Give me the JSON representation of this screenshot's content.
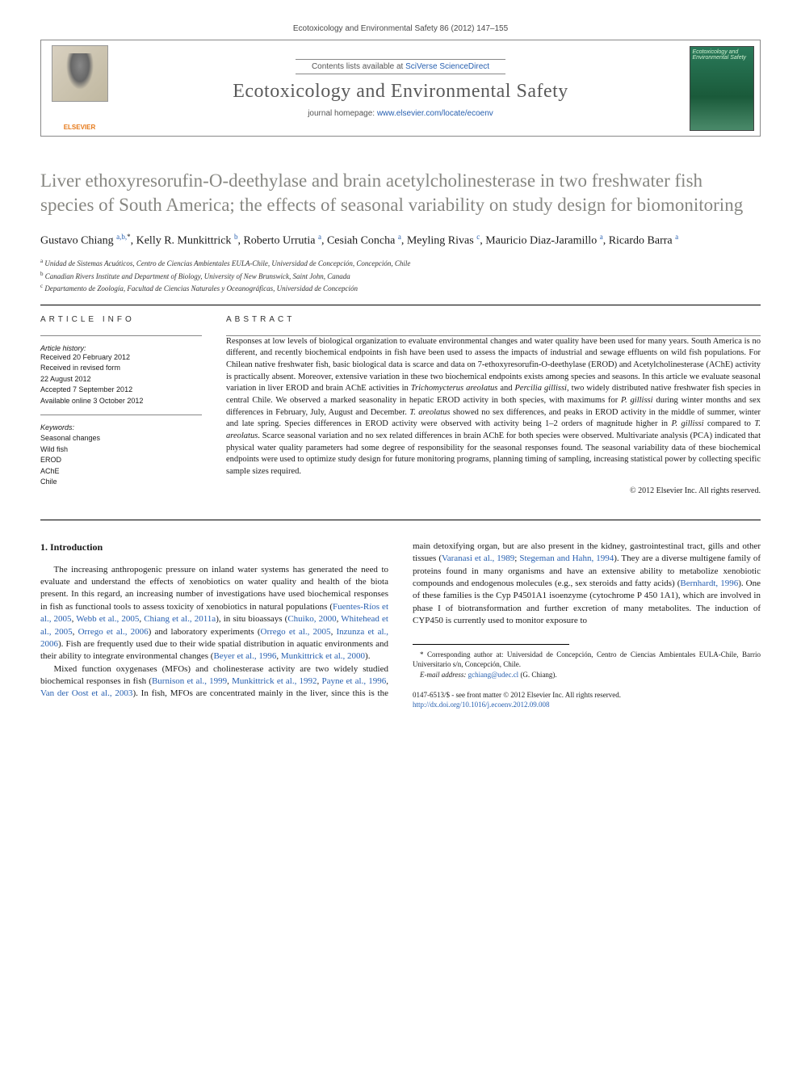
{
  "page_header": "Ecotoxicology and Environmental Safety 86 (2012) 147–155",
  "banner": {
    "contents_prefix": "Contents lists available at ",
    "contents_link": "SciVerse ScienceDirect",
    "journal_name": "Ecotoxicology and Environmental Safety",
    "homepage_prefix": "journal homepage: ",
    "homepage_link": "www.elsevier.com/locate/ecoenv",
    "publisher": "ELSEVIER",
    "cover_title": "Ecotoxicology and Environmental Safety"
  },
  "article": {
    "title": "Liver ethoxyresorufin-O-deethylase and brain acetylcholinesterase in two freshwater fish species of South America; the effects of seasonal variability on study design for biomonitoring",
    "authors_html": "Gustavo Chiang <span class='sup'>a,b,</span><span class='sup star'>*</span>, Kelly R. Munkittrick <span class='sup'>b</span>, Roberto Urrutia <span class='sup'>a</span>, Cesiah Concha <span class='sup'>a</span>, Meyling Rivas <span class='sup'>c</span>, Mauricio Diaz-Jaramillo <span class='sup'>a</span>, Ricardo Barra <span class='sup'>a</span>",
    "affiliations": [
      {
        "sup": "a",
        "text": "Unidad de Sistemas Acuáticos, Centro de Ciencias Ambientales EULA-Chile, Universidad de Concepción, Concepción, Chile"
      },
      {
        "sup": "b",
        "text": "Canadian Rivers Institute and Department of Biology, University of New Brunswick, Saint John, Canada"
      },
      {
        "sup": "c",
        "text": "Departamento de Zoología, Facultad de Ciencias Naturales y Oceanográficas, Universidad de Concepción"
      }
    ]
  },
  "article_info": {
    "heading": "article info",
    "history_label": "Article history:",
    "history": [
      "Received 20 February 2012",
      "Received in revised form",
      "22 August 2012",
      "Accepted 7 September 2012",
      "Available online 3 October 2012"
    ],
    "keywords_label": "Keywords:",
    "keywords": [
      "Seasonal changes",
      "Wild fish",
      "EROD",
      "AChE",
      "Chile"
    ]
  },
  "abstract": {
    "heading": "abstract",
    "text": "Responses at low levels of biological organization to evaluate environmental changes and water quality have been used for many years. South America is no different, and recently biochemical endpoints in fish have been used to assess the impacts of industrial and sewage effluents on wild fish populations. For Chilean native freshwater fish, basic biological data is scarce and data on 7-ethoxyresorufin-O-deethylase (EROD) and Acetylcholinesterase (AChE) activity is practically absent. Moreover, extensive variation in these two biochemical endpoints exists among species and seasons. In this article we evaluate seasonal variation in liver EROD and brain AChE activities in Trichomycterus areolatus and Percilia gillissi, two widely distributed native freshwater fish species in central Chile. We observed a marked seasonality in hepatic EROD activity in both species, with maximums for P. gillissi during winter months and sex differences in February, July, August and December. T. areolatus showed no sex differences, and peaks in EROD activity in the middle of summer, winter and late spring. Species differences in EROD activity were observed with activity being 1–2 orders of magnitude higher in P. gillissi compared to T. areolatus. Scarce seasonal variation and no sex related differences in brain AChE for both species were observed. Multivariate analysis (PCA) indicated that physical water quality parameters had some degree of responsibility for the seasonal responses found. The seasonal variability data of these biochemical endpoints were used to optimize study design for future monitoring programs, planning timing of sampling, increasing statistical power by collecting specific sample sizes required.",
    "copyright": "© 2012 Elsevier Inc. All rights reserved."
  },
  "body": {
    "section_heading": "1. Introduction",
    "para1_a": "The increasing anthropogenic pressure on inland water systems has generated the need to evaluate and understand the effects of xenobiotics on water quality and health of the biota present. In this regard, an increasing number of investigations have used biochemical responses in fish as functional tools to assess toxicity of xenobiotics in natural populations (",
    "ref1": "Fuentes-Ríos et al., 2005",
    "ref2": "Webb et al., 2005",
    "ref3": "Chiang et al., 2011a",
    "para1_b": "), in situ bioassays (",
    "ref4": "Chuiko, 2000",
    "ref5": "Whitehead et al., 2005",
    "ref6": "Orrego et al., 2006",
    "para1_c": ") and laboratory experiments (",
    "ref7": "Orrego et al., 2005",
    "ref8": "Inzunza et al., 2006",
    "para1_d": "). Fish are frequently used due to their wide spatial distribution in aquatic environments and their ability to integrate environmental changes (",
    "ref9": "Beyer et al., 1996",
    "ref10": "Munkittrick et al., 2000",
    "para1_e": ").",
    "para2_a": "Mixed function oxygenases (MFOs) and cholinesterase activity are two widely studied biochemical responses in fish (",
    "ref11": "Burnison et al., 1999",
    "ref12": "Munkittrick et al., 1992",
    "ref13": "Payne et al., 1996",
    "ref14": "Van der Oost et al., 2003",
    "para2_b": "). In fish, MFOs are concentrated mainly in the liver, since this is the main detoxifying organ, but are also present in the kidney, gastrointestinal tract, gills and other tissues (",
    "ref15": "Varanasi et al., 1989",
    "ref16": "Stegeman and Hahn, 1994",
    "para2_c": "). They are a diverse multigene family of proteins found in many organisms and have an extensive ability to metabolize xenobiotic compounds and endogenous molecules (e.g., sex steroids and fatty acids) (",
    "ref17": "Bernhardt, 1996",
    "para2_d": "). One of these families is the Cyp P4501A1 isoenzyme (cytochrome P 450 1A1), which are involved in phase I of biotransformation and further excretion of many metabolites. The induction of CYP450 is currently used to monitor exposure to"
  },
  "footnotes": {
    "corr_label": "* Corresponding author at:",
    "corr_text": "Universidad de Concepción, Centro de Ciencias Ambientales EULA-Chile, Barrio Universitario s/n, Concepción, Chile.",
    "email_label": "E-mail address:",
    "email": "gchiang@udec.cl",
    "email_who": "(G. Chiang)."
  },
  "footer": {
    "issn_line": "0147-6513/$ - see front matter © 2012 Elsevier Inc. All rights reserved.",
    "doi": "http://dx.doi.org/10.1016/j.ecoenv.2012.09.008"
  },
  "colors": {
    "link": "#2860b0",
    "title_gray": "#878782",
    "elsevier_orange": "#e67817"
  }
}
